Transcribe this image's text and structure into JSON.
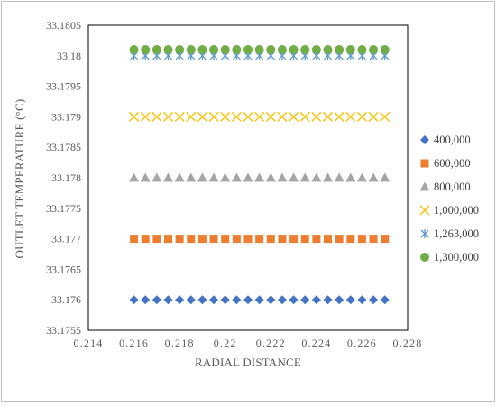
{
  "chart_data": {
    "type": "scatter",
    "title": "",
    "xlabel": "RADIAL DISTANCE",
    "ylabel": "OUTLET TEMPERATURE (°C)",
    "xlim": [
      0.214,
      0.228
    ],
    "ylim": [
      33.1755,
      33.1805
    ],
    "x_ticks": [
      "0.214",
      "0.216",
      "0.218",
      "0.22",
      "0.222",
      "0.224",
      "0.226",
      "0.228"
    ],
    "y_ticks": [
      "33.1805",
      "33.18",
      "33.1795",
      "33.179",
      "33.1785",
      "33.178",
      "33.1775",
      "33.177",
      "33.1765",
      "33.176",
      "33.1755"
    ],
    "grid": false,
    "legend_position": "right",
    "x": [
      0.216,
      0.2165,
      0.217,
      0.2175,
      0.218,
      0.2185,
      0.219,
      0.2195,
      0.22,
      0.2205,
      0.221,
      0.2215,
      0.222,
      0.2225,
      0.223,
      0.2235,
      0.224,
      0.2245,
      0.225,
      0.2255,
      0.226,
      0.2265,
      0.227
    ],
    "series": [
      {
        "name": "400,000",
        "y": 33.176,
        "marker": "diamond",
        "color": "#4472C4"
      },
      {
        "name": "600,000",
        "y": 33.177,
        "marker": "square",
        "color": "#ED7D31"
      },
      {
        "name": "800,000",
        "y": 33.178,
        "marker": "triangle",
        "color": "#A5A5A5"
      },
      {
        "name": "1,000,000",
        "y": 33.179,
        "marker": "x",
        "color": "#FFC000"
      },
      {
        "name": "1,263,000",
        "y": 33.18,
        "marker": "star",
        "color": "#5B9BD5"
      },
      {
        "name": "1,300,000",
        "y": 33.1801,
        "marker": "circle",
        "color": "#70AD47"
      }
    ]
  }
}
